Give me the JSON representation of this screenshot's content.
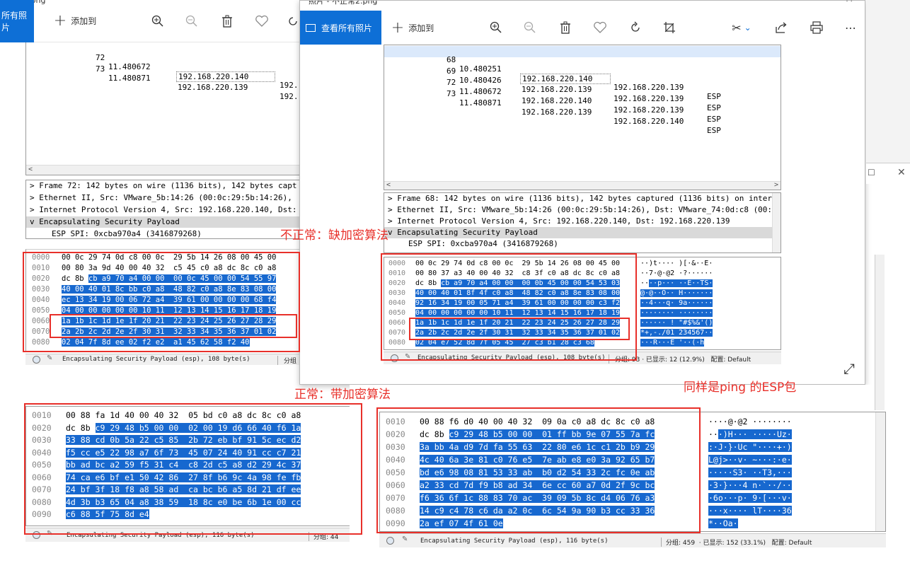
{
  "left_window": {
    "title_fragment": "显示.png",
    "view_all_label": "所有照片",
    "add_to_label": "添加到",
    "packets": [
      {
        "no": "72",
        "time": "11.480672",
        "src": "192.168.220.140",
        "dst": "192."
      },
      {
        "no": "73",
        "time": "11.480871",
        "src": "192.168.220.139",
        "dst": "192."
      }
    ],
    "tree": [
      "Frame 72: 142 bytes on wire (1136 bits), 142 bytes capt",
      "Ethernet II, Src: VMware_5b:14:26 (00:0c:29:5b:14:26),",
      "Internet Protocol Version 4, Src: 192.168.220.140, Dst:",
      "Encapsulating Security Payload",
      "ESP SPI: 0xcba970a4 (3416879268)"
    ],
    "hex": [
      {
        "off": "0000",
        "b": "00 0c 29 74 0d c8 00 0c  29 5b 14 26 08 00 45 00"
      },
      {
        "off": "0010",
        "b": "00 80 3a 9d 40 00 40 32  c5 45 c0 a8 dc 8c c0 a8"
      },
      {
        "off": "0020",
        "b": "dc 8b",
        "s": "cb a9 70 a4 00 00  00 0c 45 00 00 54 55 97"
      },
      {
        "off": "0030",
        "s": "40 00 40 01 8c bb c0 a8  48 82 c0 a8 8e 83 08 00"
      },
      {
        "off": "0040",
        "s": "ec 13 34 19 00 06 72 a4  39 61 00 00 00 00 68 f4"
      },
      {
        "off": "0050",
        "s": "04 00 00 00 00 00 10 11  12 13 14 15 16 17 18 19"
      },
      {
        "off": "0060",
        "s": "1a 1b 1c 1d 1e 1f 20 21  22 23 24 25 26 27 28 29"
      },
      {
        "off": "0070",
        "s": "2a 2b 2c 2d 2e 2f 30 31  32 33 34 35 36 37 01 02"
      },
      {
        "off": "0080",
        "s": "02 04 7f 8d ee 02 f2 e2  a1 45 62 58 f2 40"
      }
    ],
    "status": "Encapsulating Security Payload (esp), 108 byte(s)",
    "status_right": "分组"
  },
  "right_window": {
    "title": "照片 - 不正常2.png",
    "view_all_label": "查看所有照片",
    "add_to_label": "添加到",
    "packets": [
      {
        "no": "68",
        "time": "10.480251",
        "src": "192.168.220.140",
        "dst": "192.168.220.139",
        "proto": "ESP"
      },
      {
        "no": "69",
        "time": "10.480426",
        "src": "192.168.220.139",
        "dst": "192.168.220.139",
        "proto": "ESP"
      },
      {
        "no": "72",
        "time": "11.480672",
        "src": "192.168.220.140",
        "dst": "192.168.220.139",
        "proto": "ESP"
      },
      {
        "no": "73",
        "time": "11.480871",
        "src": "192.168.220.139",
        "dst": "192.168.220.140",
        "proto": "ESP"
      }
    ],
    "tree": [
      "Frame 68: 142 bytes on wire (1136 bits), 142 bytes captured (1136 bits) on interface",
      "Ethernet II, Src: VMware_5b:14:26 (00:0c:29:5b:14:26), Dst: VMware_74:0d:c8 (00:0c:29",
      "Internet Protocol Version 4, Src: 192.168.220.140, Dst: 192.168.220.139",
      "Encapsulating Security Payload",
      "ESP SPI: 0xcba970a4 (3416879268)"
    ],
    "hex": [
      {
        "off": "0000",
        "b": "00 0c 29 74 0d c8 00 0c  29 5b 14 26 08 00 45 00",
        "a": "··)t···· )[·&··E·"
      },
      {
        "off": "0010",
        "b": "00 80 37 a3 40 00 40 32  c8 3f c0 a8 dc 8c c0 a8",
        "a": "··7·@·@2 ·?······"
      },
      {
        "off": "0020",
        "b": "dc 8b",
        "s": "cb a9 70 a4 00 00  00 0b 45 00 00 54 53 03",
        "a": "··",
        "as": "··p··· ··E··TS·"
      },
      {
        "off": "0030",
        "s": "40 00 40 01 8f 4f c0 a8  48 82 c0 a8 8e 83 08 00",
        "as": "@·@··O·· H·······"
      },
      {
        "off": "0040",
        "s": "92 16 34 19 00 05 71 a4  39 61 00 00 00 00 c3 f2",
        "as": "··4···q· 9a······"
      },
      {
        "off": "0050",
        "s": "04 00 00 00 00 00 10 11  12 13 14 15 16 17 18 19",
        "as": "········ ········"
      },
      {
        "off": "0060",
        "s": "1a 1b 1c 1d 1e 1f 20 21  22 23 24 25 26 27 28 29",
        "as": "······ ! \"#$%&'()"
      },
      {
        "off": "0070",
        "s": "2a 2b 2c 2d 2e 2f 30 31  32 33 34 35 36 37 01 02",
        "as": "*+,-./01 234567··"
      },
      {
        "off": "0080",
        "s": "02 04 e7 52 8d 7f 05 45  27 c3 b1 28 c3 68",
        "as": "···R···E '··(·h"
      }
    ],
    "status": "Encapsulating Security Payload (esp), 108 byte(s)",
    "status_right": "分组: 93 · 已显示: 12 (12.9%)   配置: Default"
  },
  "bottom_left": {
    "hex": [
      {
        "off": "0010",
        "b": "00 88 fa 1d 40 00 40 32  05 bd c0 a8 dc 8c c0 a8"
      },
      {
        "off": "0020",
        "b": "dc 8b",
        "s": "c9 29 48 b5 00 00  02 00 19 d6 66 40 f6 1a"
      },
      {
        "off": "0030",
        "s": "33 88 cd 0b 5a 22 c5 85  2b 72 eb bf 91 5c ec d2"
      },
      {
        "off": "0040",
        "s": "f5 cc e5 22 98 a7 6f 73  45 07 24 40 91 cc c7 21"
      },
      {
        "off": "0050",
        "s": "bb ad bc a2 59 f5 31 c4  c8 2d c5 a8 d2 29 4c 37"
      },
      {
        "off": "0060",
        "s": "74 ca e6 bf e1 50 42 86  27 8f b6 9c 4a 98 fe fb"
      },
      {
        "off": "0070",
        "s": "24 bf 3f 18 f8 a8 58 ad  ca bc b6 a5 8d 21 df ee"
      },
      {
        "off": "0080",
        "s": "4d 3b b3 65 04 a8 38 59  18 8c e0 be 6b 1e 00 cc"
      },
      {
        "off": "0090",
        "s": "c6 88 5f 75 8d e4"
      }
    ],
    "status": "Encapsulating Security Payload (esp), 116 byte(s)",
    "status_right": "分组: 44"
  },
  "bottom_right": {
    "hex": [
      {
        "off": "0010",
        "b": "00 88 f6 d0 40 00 40 32  09 0a c0 a8 dc 8c c0 a8",
        "a": "····@·@2 ········"
      },
      {
        "off": "0020",
        "b": "dc 8b",
        "s": "c9 29 48 b5 00 00  01 ff bb 9e 07 55 7a fc",
        "a": "··",
        "as": "·)H··· ·····Uz·"
      },
      {
        "off": "0030",
        "s": "3a bb 4a d9 7d fa 55 63  22 80 e6 1c c1 2b b9 29",
        "as": ":·J·}·Uc \"····+·)"
      },
      {
        "off": "0040",
        "s": "4c 40 6a 3e 81 c0 76 e5  7e ab e8 e0 3a 92 65 b7",
        "as": "L@j>··v· ~···:·e·"
      },
      {
        "off": "0050",
        "s": "bd e6 98 08 81 53 33 ab  b0 d2 54 33 2c fc 0e ab",
        "as": "·····S3· ··T3,···"
      },
      {
        "off": "0060",
        "s": "a2 33 cd 7d f9 b8 ad 34  6e cc 60 a7 0d 2f 9c bc",
        "as": "·3·}···4 n·`··/··"
      },
      {
        "off": "0070",
        "s": "f6 36 6f 1c 88 83 70 ac  39 09 5b 8c d4 06 76 a3",
        "as": "·6o···p· 9·[···v·"
      },
      {
        "off": "0080",
        "s": "14 c9 c4 78 c6 da a2 0c  6c 54 9a 90 b3 cc 33 36",
        "as": "···x···· lT····36"
      },
      {
        "off": "0090",
        "s": "2a ef 07 4f 61 0e",
        "as": "*··Oa·"
      }
    ],
    "status": "Encapsulating Security Payload (esp), 116 byte(s)",
    "status_right": "分组: 459  · 已显示: 152 (33.1%)   配置: Default"
  },
  "annotations": {
    "abnormal": "不正常：缺加密算法",
    "normal": "正常：带加密算法",
    "same_ping": "同样是ping 的ESP包"
  },
  "colors": {
    "selection": "#1768cf",
    "annotation": "#e8302a",
    "photos_blue": "#0e6fd6"
  }
}
